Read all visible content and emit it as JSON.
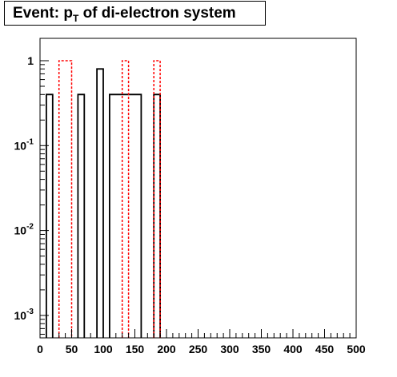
{
  "title": {
    "prefix": "Event: p",
    "subscript": "T",
    "suffix": " of di-electron system"
  },
  "chart_data": {
    "type": "bar",
    "title": "Event: p_T of di-electron system",
    "xlabel": "",
    "ylabel": "",
    "xlim": [
      0,
      500
    ],
    "ylim": [
      0.0005,
      2
    ],
    "ylog": true,
    "grid": false,
    "legend": "none",
    "bin_width": 10,
    "x_ticks": [
      "0",
      "50",
      "100",
      "150",
      "200",
      "250",
      "300",
      "350",
      "400",
      "450",
      "500"
    ],
    "y_ticks": [
      {
        "base": "1",
        "exp": ""
      },
      {
        "base": "10",
        "exp": "-1"
      },
      {
        "base": "10",
        "exp": "-2"
      },
      {
        "base": "10",
        "exp": "-3"
      }
    ],
    "series": [
      {
        "style": "solid",
        "color": "#000000",
        "bins": [
          {
            "x": [
              10,
              20
            ],
            "y": 0.4
          },
          {
            "x": [
              60,
              70
            ],
            "y": 0.4
          },
          {
            "x": [
              90,
              100
            ],
            "y": 0.8
          },
          {
            "x": [
              110,
              160
            ],
            "y": 0.4
          },
          {
            "x": [
              180,
              190
            ],
            "y": 0.4
          }
        ]
      },
      {
        "style": "dashed",
        "color": "#ff0000",
        "bins": [
          {
            "x": [
              30,
              50
            ],
            "y": 1.0
          },
          {
            "x": [
              130,
              140
            ],
            "y": 1.0
          },
          {
            "x": [
              180,
              190
            ],
            "y": 1.0
          }
        ]
      }
    ]
  }
}
